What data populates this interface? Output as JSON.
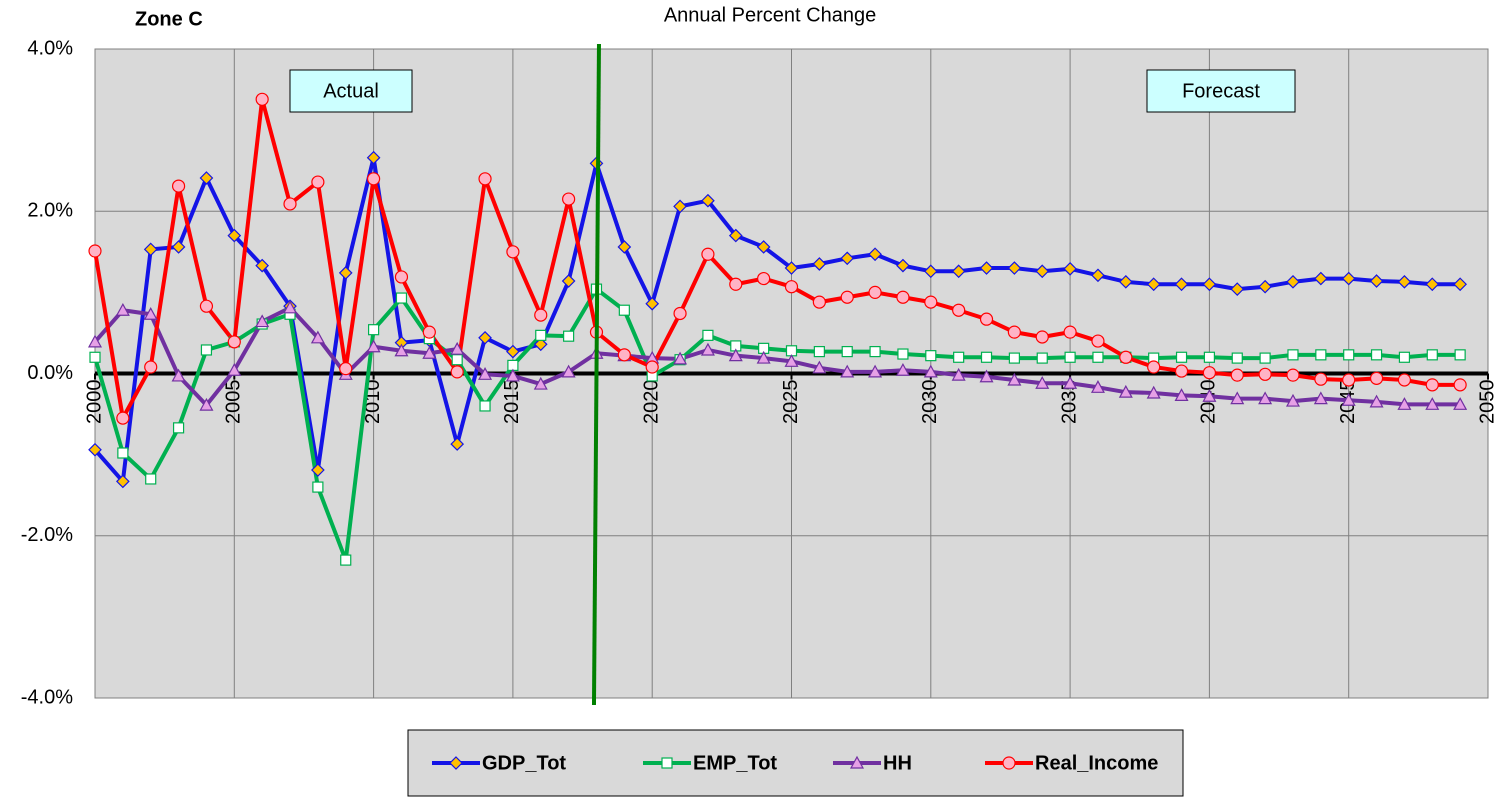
{
  "chart_data": {
    "type": "line",
    "title": "Annual Percent Change",
    "subtitle": "Zone C",
    "annotations": [
      "Actual",
      "Forecast"
    ],
    "x": [
      2000,
      2001,
      2002,
      2003,
      2004,
      2005,
      2006,
      2007,
      2008,
      2009,
      2010,
      2011,
      2012,
      2013,
      2014,
      2015,
      2016,
      2017,
      2018,
      2019,
      2020,
      2021,
      2022,
      2023,
      2024,
      2025,
      2026,
      2027,
      2028,
      2029,
      2030,
      2031,
      2032,
      2033,
      2034,
      2035,
      2036,
      2037,
      2038,
      2039,
      2040,
      2041,
      2042,
      2043,
      2044,
      2045,
      2046,
      2047,
      2048,
      2049
    ],
    "series": [
      {
        "name": "GDP_Tot",
        "color": "#1414e6",
        "marker": "diamond",
        "marker_fill": "#ffc000",
        "values": [
          -0.94,
          -1.33,
          1.53,
          1.56,
          2.41,
          1.7,
          1.33,
          0.83,
          -1.19,
          1.24,
          2.66,
          0.38,
          0.41,
          -0.87,
          0.44,
          0.27,
          0.36,
          1.14,
          2.59,
          1.56,
          0.86,
          2.06,
          2.13,
          1.7,
          1.56,
          1.3,
          1.35,
          1.42,
          1.47,
          1.33,
          1.26,
          1.26,
          1.3,
          1.3,
          1.26,
          1.29,
          1.21,
          1.13,
          1.1,
          1.1,
          1.1,
          1.04,
          1.07,
          1.13,
          1.17,
          1.17,
          1.14,
          1.13,
          1.1,
          1.1
        ]
      },
      {
        "name": "EMP_Tot",
        "color": "#00b050",
        "marker": "square",
        "marker_fill": "#ffffff",
        "values": [
          0.2,
          -0.98,
          -1.3,
          -0.67,
          0.29,
          0.39,
          0.61,
          0.73,
          -1.4,
          -2.3,
          0.54,
          0.93,
          0.43,
          0.17,
          -0.4,
          0.1,
          0.47,
          0.46,
          1.04,
          0.78,
          -0.03,
          0.17,
          0.47,
          0.34,
          0.31,
          0.28,
          0.27,
          0.27,
          0.27,
          0.24,
          0.22,
          0.2,
          0.2,
          0.19,
          0.19,
          0.2,
          0.2,
          0.2,
          0.19,
          0.2,
          0.2,
          0.19,
          0.19,
          0.23,
          0.23,
          0.23,
          0.23,
          0.2,
          0.23,
          0.23
        ]
      },
      {
        "name": "HH",
        "color": "#7030a0",
        "marker": "triangle",
        "marker_fill": "#e6a0e6",
        "values": [
          0.39,
          0.78,
          0.73,
          -0.03,
          -0.39,
          0.04,
          0.64,
          0.81,
          0.44,
          -0.01,
          0.33,
          0.28,
          0.25,
          0.3,
          -0.01,
          -0.03,
          -0.13,
          0.02,
          0.25,
          0.22,
          0.19,
          0.18,
          0.29,
          0.22,
          0.19,
          0.15,
          0.07,
          0.02,
          0.02,
          0.04,
          0.02,
          -0.02,
          -0.04,
          -0.08,
          -0.12,
          -0.12,
          -0.17,
          -0.23,
          -0.24,
          -0.27,
          -0.28,
          -0.31,
          -0.31,
          -0.34,
          -0.31,
          -0.33,
          -0.35,
          -0.38,
          -0.38,
          -0.38
        ]
      },
      {
        "name": "Real_Income",
        "color": "#ff0000",
        "marker": "circle",
        "marker_fill": "#ffb3c6",
        "values": [
          1.51,
          -0.55,
          0.08,
          2.31,
          0.83,
          0.39,
          3.38,
          2.09,
          2.36,
          0.06,
          2.4,
          1.19,
          0.51,
          0.02,
          2.4,
          1.5,
          0.72,
          2.15,
          0.51,
          0.23,
          0.08,
          0.74,
          1.47,
          1.1,
          1.17,
          1.07,
          0.88,
          0.94,
          1.0,
          0.94,
          0.88,
          0.78,
          0.67,
          0.51,
          0.45,
          0.51,
          0.4,
          0.2,
          0.08,
          0.03,
          0.01,
          -0.02,
          -0.01,
          -0.02,
          -0.07,
          -0.08,
          -0.06,
          -0.08,
          -0.14,
          -0.14
        ]
      }
    ],
    "xlim": [
      2000,
      2050
    ],
    "xticks": [
      2000,
      2005,
      2010,
      2015,
      2020,
      2025,
      2030,
      2035,
      2040,
      2045,
      2050
    ],
    "ylim": [
      -4,
      4
    ],
    "yticks": [
      {
        "value": -4,
        "label": "-4.0%"
      },
      {
        "value": -2,
        "label": "-2.0%"
      },
      {
        "value": 0,
        "label": "0.0%"
      },
      {
        "value": 2,
        "label": "2.0%"
      },
      {
        "value": 4,
        "label": "4.0%"
      }
    ],
    "vline": 2018,
    "grid": true,
    "legend": "bottom"
  }
}
